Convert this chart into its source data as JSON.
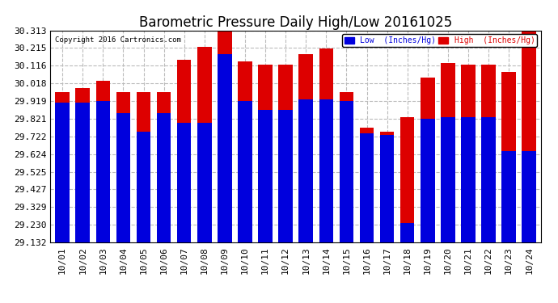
{
  "title": "Barometric Pressure Daily High/Low 20161025",
  "copyright": "Copyright 2016 Cartronics.com",
  "dates": [
    "10/01",
    "10/02",
    "10/03",
    "10/04",
    "10/05",
    "10/06",
    "10/07",
    "10/08",
    "10/09",
    "10/10",
    "10/11",
    "10/12",
    "10/13",
    "10/14",
    "10/15",
    "10/16",
    "10/17",
    "10/18",
    "10/19",
    "10/20",
    "10/21",
    "10/22",
    "10/23",
    "10/24"
  ],
  "low_values": [
    29.91,
    29.91,
    29.92,
    29.85,
    29.75,
    29.85,
    29.8,
    29.8,
    30.18,
    29.92,
    29.87,
    29.87,
    29.93,
    29.93,
    29.92,
    29.74,
    29.73,
    29.24,
    29.82,
    29.83,
    29.83,
    29.83,
    29.64,
    29.64
  ],
  "high_values": [
    29.97,
    29.99,
    30.03,
    29.97,
    29.97,
    29.97,
    30.15,
    30.22,
    30.31,
    30.14,
    30.12,
    30.12,
    30.18,
    30.21,
    29.97,
    29.77,
    29.75,
    29.83,
    30.05,
    30.13,
    30.12,
    30.12,
    30.08,
    30.31
  ],
  "ylim": [
    29.132,
    30.313
  ],
  "yticks": [
    29.132,
    29.23,
    29.329,
    29.427,
    29.525,
    29.624,
    29.722,
    29.821,
    29.919,
    30.018,
    30.116,
    30.215,
    30.313
  ],
  "low_color": "#0000dd",
  "high_color": "#dd0000",
  "bg_color": "#ffffff",
  "grid_color": "#bbbbbb",
  "bar_width": 0.7,
  "title_fontsize": 12,
  "legend_low_label": "Low  (Inches/Hg)",
  "legend_high_label": "High  (Inches/Hg)"
}
